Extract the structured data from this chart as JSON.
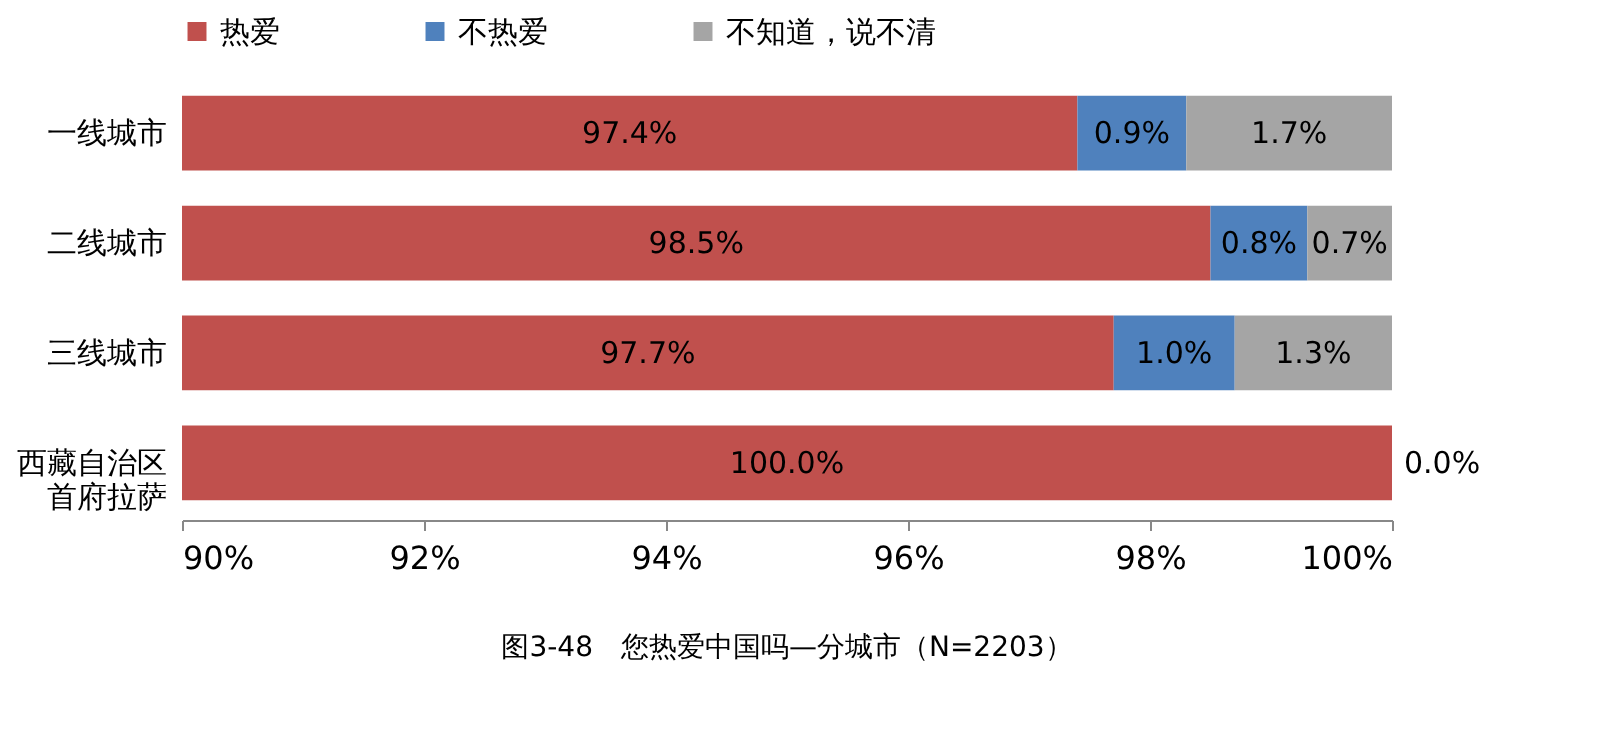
{
  "chart_data": {
    "type": "bar",
    "orientation": "horizontal",
    "stacked": true,
    "title": "图3-48　您热爱中国吗—分城市（N=2203）",
    "categories": [
      "一线城市",
      "二线城市",
      "三线城市",
      "西藏自治区首府拉萨"
    ],
    "series": [
      {
        "name": "热爱",
        "color": "#c0504d",
        "values": [
          97.4,
          98.5,
          97.7,
          100.0
        ],
        "value_labels": [
          "97.4%",
          "98.5%",
          "97.7%",
          "100.0%"
        ]
      },
      {
        "name": "不热爱",
        "color": "#4f81bd",
        "base": [
          97.4,
          98.5,
          97.7,
          null
        ],
        "values": [
          0.9,
          0.8,
          1.0,
          0.0
        ],
        "value_labels": [
          "0.9%",
          "0.8%",
          "1.0%",
          "0.0%"
        ]
      },
      {
        "name": "不知道，说不清",
        "color": "#a5a5a5",
        "base": [
          98.3,
          99.3,
          98.7,
          null
        ],
        "values": [
          1.7,
          0.7,
          1.3,
          null
        ],
        "value_labels": [
          "1.7%",
          "0.7%",
          "1.3%",
          null
        ]
      }
    ],
    "xlim": [
      90,
      100
    ],
    "xticks": [
      {
        "value": 90,
        "label": "90%"
      },
      {
        "value": 92,
        "label": "92%"
      },
      {
        "value": 94,
        "label": "94%"
      },
      {
        "value": 96,
        "label": "96%"
      },
      {
        "value": 98,
        "label": "98%"
      },
      {
        "value": 100,
        "label": "100%"
      }
    ],
    "legend": "top",
    "grid": false
  }
}
